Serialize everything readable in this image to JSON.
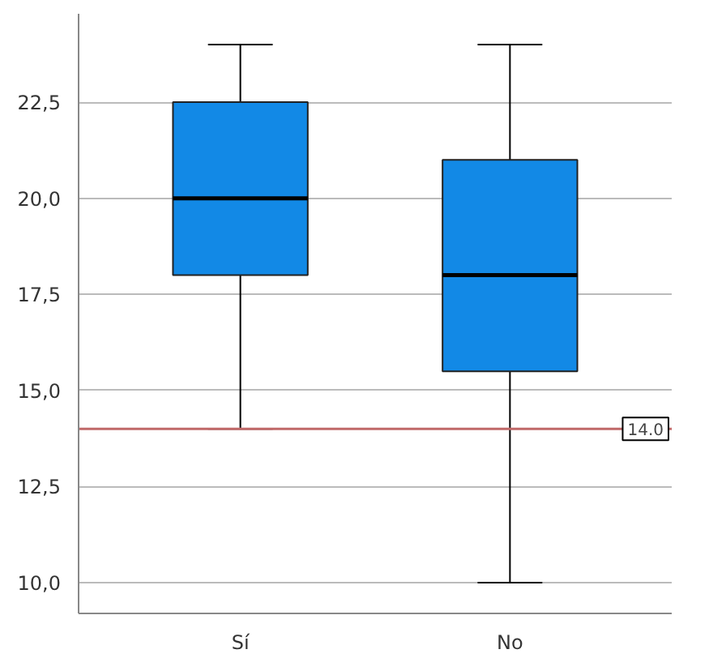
{
  "chart_data": {
    "type": "box",
    "categories": [
      "Sí",
      "No"
    ],
    "color": "#1289e6",
    "boxes": [
      {
        "low": 14,
        "q1": 18,
        "median": 20,
        "q3": 22.5,
        "high": 24
      },
      {
        "low": 10,
        "q1": 15.5,
        "median": 18,
        "q3": 21,
        "high": 24
      }
    ],
    "ylim": [
      9.2,
      24.8
    ],
    "yticks": [
      {
        "value": 10,
        "label": "10,0"
      },
      {
        "value": 12.5,
        "label": "12,5"
      },
      {
        "value": 15,
        "label": "15,0"
      },
      {
        "value": 17.5,
        "label": "17,5"
      },
      {
        "value": 20,
        "label": "20,0"
      },
      {
        "value": 22.5,
        "label": "22,5"
      }
    ],
    "grid": "y",
    "ref_lines": [
      {
        "axis": "y",
        "value": 14,
        "label": "14.0",
        "color": "#c06868"
      }
    ]
  }
}
